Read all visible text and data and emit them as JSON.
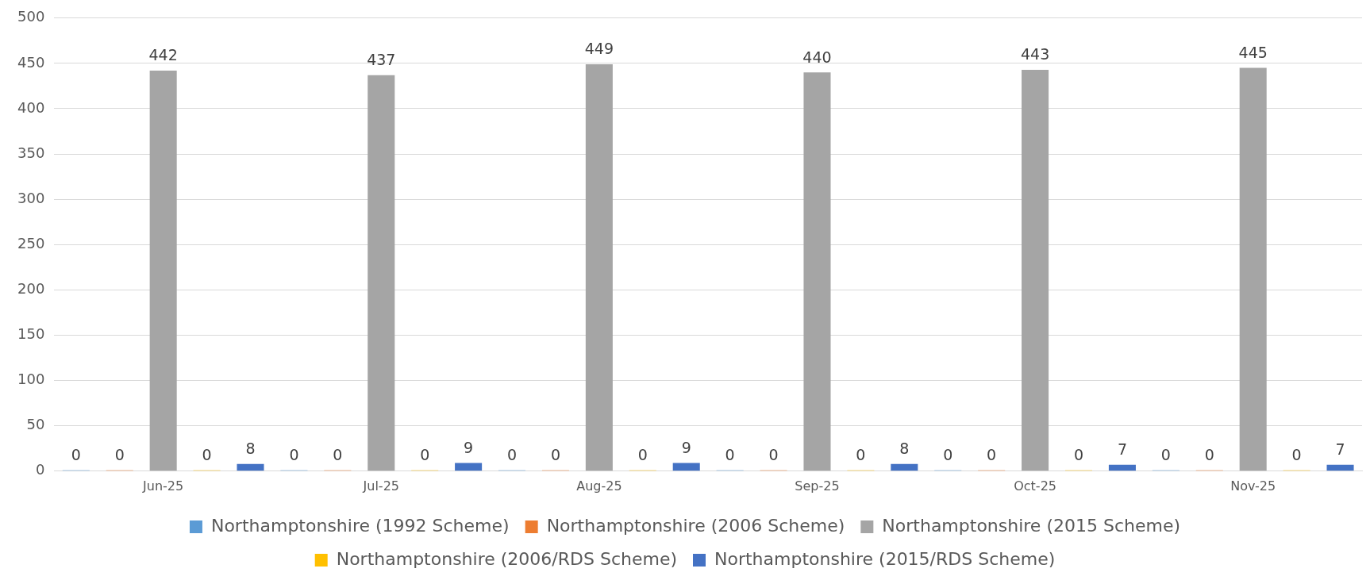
{
  "chart_data": {
    "type": "bar",
    "categories": [
      "Jun-25",
      "Jul-25",
      "Aug-25",
      "Sep-25",
      "Oct-25",
      "Nov-25"
    ],
    "series": [
      {
        "name": "Northamptonshire (1992 Scheme)",
        "color": "#5b9bd5",
        "values": [
          0,
          0,
          0,
          0,
          0,
          0
        ]
      },
      {
        "name": "Northamptonshire (2006 Scheme)",
        "color": "#ed7d31",
        "values": [
          0,
          0,
          0,
          0,
          0,
          0
        ]
      },
      {
        "name": "Northamptonshire (2015 Scheme)",
        "color": "#a5a5a5",
        "values": [
          442,
          437,
          449,
          440,
          443,
          445
        ]
      },
      {
        "name": "Northamptonshire (2006/RDS Scheme)",
        "color": "#ffc000",
        "values": [
          0,
          0,
          0,
          0,
          0,
          0
        ]
      },
      {
        "name": "Northamptonshire (2015/RDS Scheme)",
        "color": "#4472c4",
        "values": [
          8,
          9,
          9,
          8,
          7,
          7
        ]
      }
    ],
    "ylim": [
      0,
      500
    ],
    "yticks": [
      0,
      50,
      100,
      150,
      200,
      250,
      300,
      350,
      400,
      450,
      500
    ],
    "grid": "y",
    "legend": "bottom",
    "data_labels": true
  }
}
